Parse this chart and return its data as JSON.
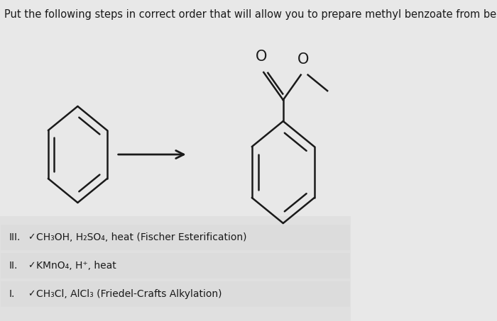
{
  "title": "Put the following steps in correct order that will allow you to prepare methyl benzoate from benzene.",
  "title_fontsize": 10.5,
  "bg_color": "#e8e8e8",
  "line_color": "#1a1a1a",
  "line_width": 1.8,
  "steps": [
    {
      "roman": "III.",
      "check": "✓",
      "text": "CH₃OH, H₂SO₄, heat (Fischer Esterification)"
    },
    {
      "roman": "II.",
      "check": "✓",
      "text": "KMnO₄, H⁺, heat"
    },
    {
      "roman": "I.",
      "check": "✓",
      "text": "CH₃Cl, AlCl₃ (Friedel-Crafts Alkylation)"
    }
  ]
}
